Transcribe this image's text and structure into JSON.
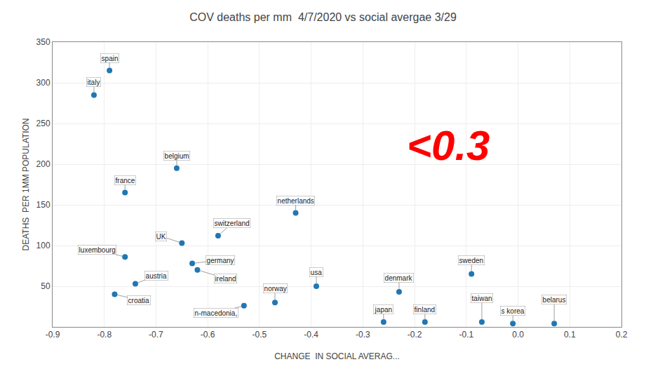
{
  "chart_data": {
    "type": "scatter",
    "title": "COV deaths per mm  4/7/2020 vs social avergae 3/29",
    "xlabel": "CHANGE  IN SOCIAL AVERAG...",
    "ylabel": "DEATHS  PER 1MM POPULATION",
    "xlim": [
      -0.9,
      0.2
    ],
    "ylim": [
      0,
      350
    ],
    "xticks": [
      -0.9,
      -0.8,
      -0.7,
      -0.6,
      -0.5,
      -0.4,
      -0.3,
      -0.2,
      -0.1,
      {
        "value": 0,
        "label": "0.0"
      },
      0.1,
      0.2
    ],
    "yticks": [
      50,
      100,
      150,
      200,
      250,
      300,
      350
    ],
    "x": [
      -0.79,
      -0.82,
      -0.66,
      -0.76,
      -0.43,
      -0.58,
      -0.65,
      -0.76,
      -0.63,
      -0.62,
      -0.74,
      -0.78,
      -0.53,
      -0.47,
      -0.39,
      -0.23,
      -0.09,
      -0.26,
      -0.18,
      -0.07,
      -0.01,
      0.07
    ],
    "values": [
      315,
      285,
      195,
      165,
      140,
      112,
      103,
      86,
      78,
      70,
      53,
      40,
      26,
      30,
      50,
      43,
      65,
      6,
      6,
      6,
      4,
      4
    ],
    "labels": [
      "spain",
      "italy",
      "belgium",
      "france",
      "netherlands",
      "switzerland",
      "UK",
      "luxembourg",
      "germany",
      "ireland",
      "austria",
      "croatia",
      "n-macedonia,",
      "norway",
      "usa",
      "denmark",
      "sweden",
      "japan",
      "finland",
      "taiwan",
      "s korea",
      "belarus"
    ],
    "annotations": [
      {
        "text": "<0.3",
        "color": "red"
      }
    ],
    "grid": true
  }
}
